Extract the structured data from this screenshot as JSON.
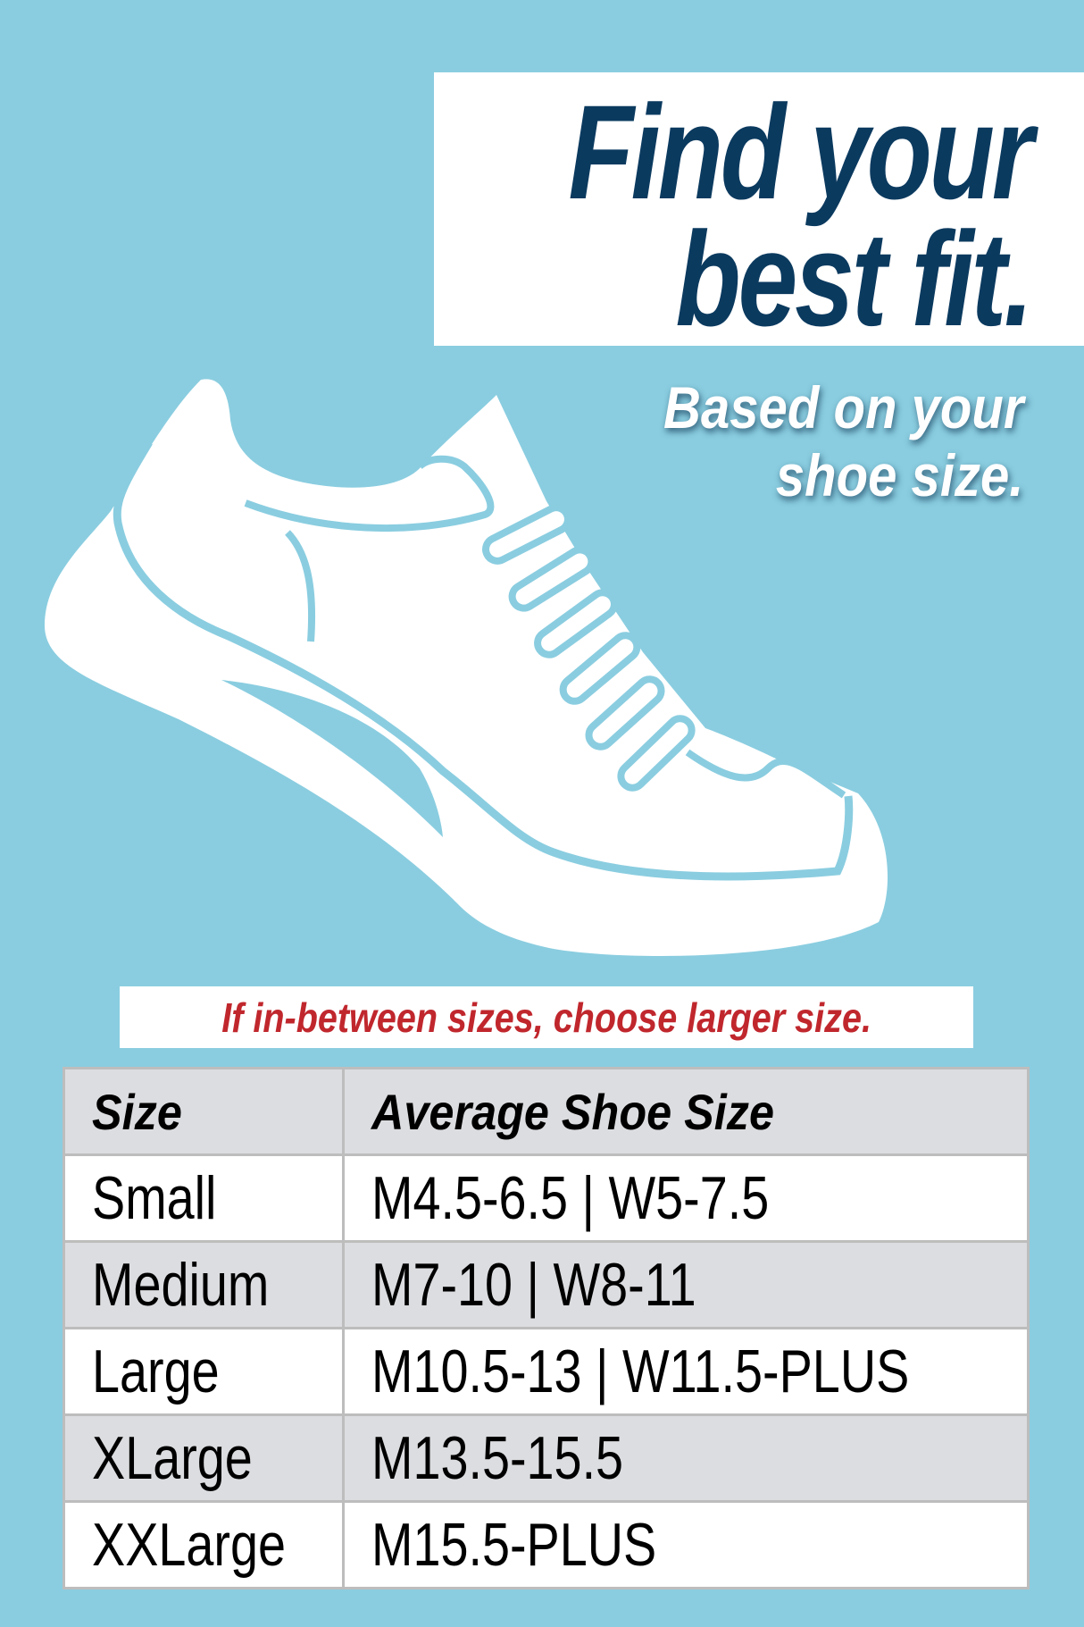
{
  "colors": {
    "background": "#8acde0",
    "title": "#0b3a5f",
    "note": "#c0272d",
    "table_header_bg": "#dcdde0"
  },
  "title": {
    "line1": "Find your",
    "line2": "best fit."
  },
  "subtitle": {
    "line1": "Based on your",
    "line2": "shoe size."
  },
  "illustration": {
    "icon": "sneaker-icon"
  },
  "note": "If in-between sizes, choose larger size.",
  "table": {
    "headers": [
      "Size",
      "Average Shoe Size"
    ],
    "rows": [
      {
        "size": "Small",
        "shoe": "M4.5-6.5 | W5-7.5"
      },
      {
        "size": "Medium",
        "shoe": "M7-10 | W8-11"
      },
      {
        "size": "Large",
        "shoe": "M10.5-13 | W11.5-PLUS"
      },
      {
        "size": "XLarge",
        "shoe": "M13.5-15.5"
      },
      {
        "size": "XXLarge",
        "shoe": "M15.5-PLUS"
      }
    ]
  }
}
